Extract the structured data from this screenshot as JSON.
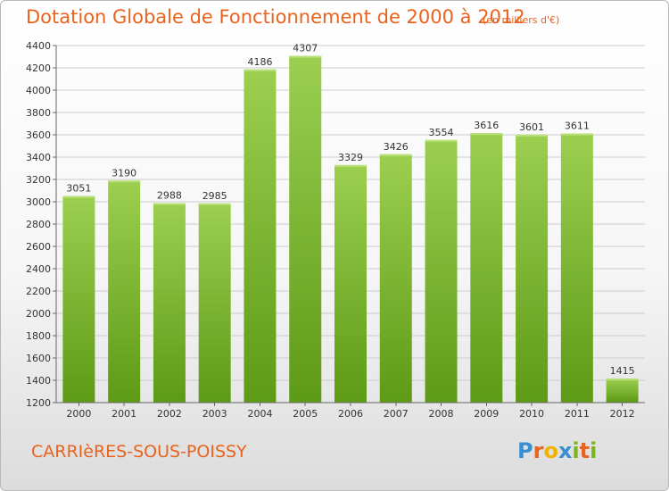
{
  "header": {
    "title": "Dotation Globale de Fonctionnement de 2000 à 2012",
    "unit": "(en milliers d'€)"
  },
  "footer": {
    "commune": "CARRIèRES-SOUS-POISSY",
    "logo": "Proxiti"
  },
  "colors": {
    "title": "#e8641e",
    "bar_top": "#9ccf50",
    "bar_bottom": "#5d9a16",
    "grid": "#cccccc"
  },
  "chart_data": {
    "type": "bar",
    "title": "Dotation Globale de Fonctionnement de 2000 à 2012",
    "subtitle": "(en milliers d'€)",
    "xlabel": "",
    "ylabel": "",
    "categories": [
      "2000",
      "2001",
      "2002",
      "2003",
      "2004",
      "2005",
      "2006",
      "2007",
      "2008",
      "2009",
      "2010",
      "2011",
      "2012"
    ],
    "values": [
      3051,
      3190,
      2988,
      2985,
      4186,
      4307,
      3329,
      3426,
      3554,
      3616,
      3601,
      3611,
      1415
    ],
    "value_labels": [
      "3051",
      "3190",
      "2988",
      "2985",
      "4186",
      "4307",
      "3329",
      "3426",
      "3554",
      "3616",
      "3601",
      "3611",
      "1415"
    ],
    "ylim": [
      1200,
      4400
    ],
    "yticks": [
      1200,
      1400,
      1600,
      1800,
      2000,
      2200,
      2400,
      2600,
      2800,
      3000,
      3200,
      3400,
      3600,
      3800,
      4000,
      4200,
      4400
    ],
    "grid": true,
    "legend": "none"
  }
}
